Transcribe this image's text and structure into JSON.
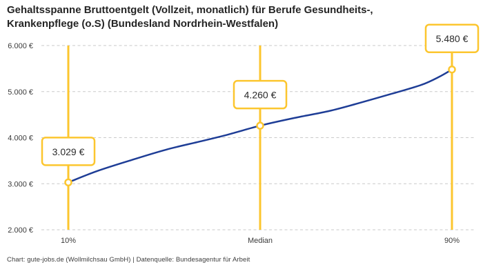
{
  "title": {
    "lines": [
      "Gehaltsspanne Bruttoentgelt (Vollzeit, monatlich) für Berufe Gesundheits-,",
      "Krankenpflege (o.S) (Bundesland Nordrhein-Westfalen)"
    ]
  },
  "footer": "Chart: gute-jobs.de (Wollmilchsau GmbH) | Datenquelle: Bundesagentur für Arbeit",
  "chart_data": {
    "type": "line",
    "title": "Gehaltsspanne Bruttoentgelt (Vollzeit, monatlich) für Berufe Gesundheits-, Krankenpflege (o.S) (Bundesland Nordrhein-Westfalen)",
    "ylim": [
      2000,
      6000
    ],
    "y_ticks": [
      2000,
      3000,
      4000,
      5000,
      6000
    ],
    "y_tick_labels": [
      "2.000 €",
      "3.000 €",
      "4.000 €",
      "5.000 €",
      "6.000 €"
    ],
    "x_tick_labels": [
      "10%",
      "Median",
      "90%"
    ],
    "grid": "horizontal-dashed",
    "legend": "none",
    "percentiles": [
      {
        "label": "10%",
        "position": 0.0,
        "value": 3029,
        "value_label": "3.029 €"
      },
      {
        "label": "Median",
        "position": 0.5,
        "value": 4260,
        "value_label": "4.260 €"
      },
      {
        "label": "90%",
        "position": 1.0,
        "value": 5480,
        "value_label": "5.480 €"
      }
    ],
    "curve": [
      {
        "f": 0.0,
        "value": 3029
      },
      {
        "f": 0.075,
        "value": 3275
      },
      {
        "f": 0.165,
        "value": 3515
      },
      {
        "f": 0.255,
        "value": 3740
      },
      {
        "f": 0.345,
        "value": 3920
      },
      {
        "f": 0.417,
        "value": 4069
      },
      {
        "f": 0.5,
        "value": 4260
      },
      {
        "f": 0.59,
        "value": 4429
      },
      {
        "f": 0.68,
        "value": 4579
      },
      {
        "f": 0.755,
        "value": 4744
      },
      {
        "f": 0.845,
        "value": 4958
      },
      {
        "f": 0.92,
        "value": 5144
      },
      {
        "f": 0.966,
        "value": 5318
      },
      {
        "f": 1.0,
        "value": 5480
      }
    ],
    "colors": {
      "curve": "#1e3d96",
      "marker_line": "#fcc62e",
      "marker_fill": "#ffffff",
      "grid": "#c9c9c9",
      "box_border": "#fcc62e",
      "box_fill": "#ffffff",
      "box_text": "#2a2a2a",
      "axis_text": "#3a3a3a"
    }
  }
}
